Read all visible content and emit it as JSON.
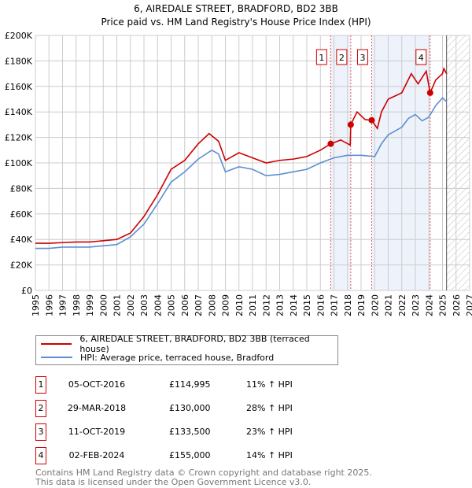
{
  "chart_data": {
    "type": "line",
    "title": "6, AIREDALE STREET, BRADFORD, BD2 3BB",
    "subtitle": "Price paid vs. HM Land Registry's House Price Index (HPI)",
    "xlim": [
      1995,
      2027
    ],
    "ylim": [
      0,
      200000
    ],
    "x_ticks": [
      "1995",
      "1996",
      "1997",
      "1998",
      "1999",
      "2000",
      "2001",
      "2002",
      "2003",
      "2004",
      "2005",
      "2006",
      "2007",
      "2008",
      "2009",
      "2010",
      "2011",
      "2012",
      "2013",
      "2014",
      "2015",
      "2016",
      "2017",
      "2018",
      "2019",
      "2020",
      "2021",
      "2022",
      "2023",
      "2024",
      "2025",
      "2026",
      "2027"
    ],
    "y_ticks": [
      "£0",
      "£20K",
      "£40K",
      "£60K",
      "£80K",
      "£100K",
      "£120K",
      "£140K",
      "£160K",
      "£180K",
      "£200K"
    ],
    "grid": true,
    "series": [
      {
        "name": "6, AIREDALE STREET, BRADFORD, BD2 3BB (terraced house)",
        "color": "#cc0000",
        "x": [
          1995,
          1996,
          1997,
          1998,
          1999,
          2000,
          2001,
          2002,
          2003,
          2004,
          2005,
          2006,
          2007,
          2007.8,
          2008.5,
          2009,
          2010,
          2011,
          2012,
          2013,
          2014,
          2015,
          2016,
          2016.76,
          2017.5,
          2018.2,
          2018.24,
          2018.7,
          2019.3,
          2019.78,
          2020.2,
          2020.5,
          2021,
          2022,
          2022.7,
          2023.2,
          2023.8,
          2024.09,
          2024.5,
          2025,
          2025.1,
          2025.3
        ],
        "y": [
          37000,
          37000,
          37500,
          38000,
          38000,
          39000,
          40000,
          45000,
          58000,
          75000,
          95000,
          102000,
          115000,
          123000,
          117000,
          102000,
          108000,
          104000,
          100000,
          102000,
          103000,
          105000,
          110000,
          114995,
          118000,
          114000,
          130000,
          140000,
          134000,
          133500,
          127000,
          140000,
          150000,
          155000,
          170000,
          162000,
          172000,
          155000,
          165000,
          170000,
          174000,
          170000
        ]
      },
      {
        "name": "HPI: Average price, terraced house, Bradford",
        "color": "#5b8fd0",
        "x": [
          1995,
          1996,
          1997,
          1998,
          1999,
          2000,
          2001,
          2002,
          2003,
          2004,
          2005,
          2006,
          2007,
          2008,
          2008.5,
          2009,
          2010,
          2011,
          2012,
          2013,
          2014,
          2015,
          2016,
          2017,
          2018,
          2019,
          2020,
          2020.5,
          2021,
          2022,
          2022.5,
          2023,
          2023.5,
          2024,
          2024.5,
          2025,
          2025.3
        ],
        "y": [
          33000,
          33000,
          34000,
          34000,
          34000,
          35000,
          36000,
          42000,
          52000,
          68000,
          85000,
          93000,
          103000,
          110000,
          107000,
          93000,
          97000,
          95000,
          90000,
          91000,
          93000,
          95000,
          100000,
          104000,
          106000,
          106000,
          105000,
          115000,
          122000,
          128000,
          135000,
          138000,
          133000,
          136000,
          145000,
          151000,
          148000
        ]
      }
    ],
    "sales": [
      {
        "label": "1",
        "date": "05-OCT-2016",
        "x": 2016.76,
        "price": "£114,995",
        "value": 114995,
        "hpi": "11% ↑ HPI"
      },
      {
        "label": "2",
        "date": "29-MAR-2018",
        "x": 2018.24,
        "price": "£130,000",
        "value": 130000,
        "hpi": "28% ↑ HPI"
      },
      {
        "label": "3",
        "date": "11-OCT-2019",
        "x": 2019.78,
        "price": "£133,500",
        "value": 133500,
        "hpi": "23% ↑ HPI"
      },
      {
        "label": "4",
        "date": "02-FEB-2024",
        "x": 2024.09,
        "price": "£155,000",
        "value": 155000,
        "hpi": "14% ↑ HPI"
      }
    ],
    "shaded_ranges": [
      [
        2016.76,
        2018.24
      ],
      [
        2019.78,
        2024.09
      ]
    ],
    "forecast_from": 2025.3
  },
  "footer": {
    "line1": "Contains HM Land Registry data © Crown copyright and database right 2025.",
    "line2": "This data is licensed under the Open Government Licence v3.0."
  }
}
